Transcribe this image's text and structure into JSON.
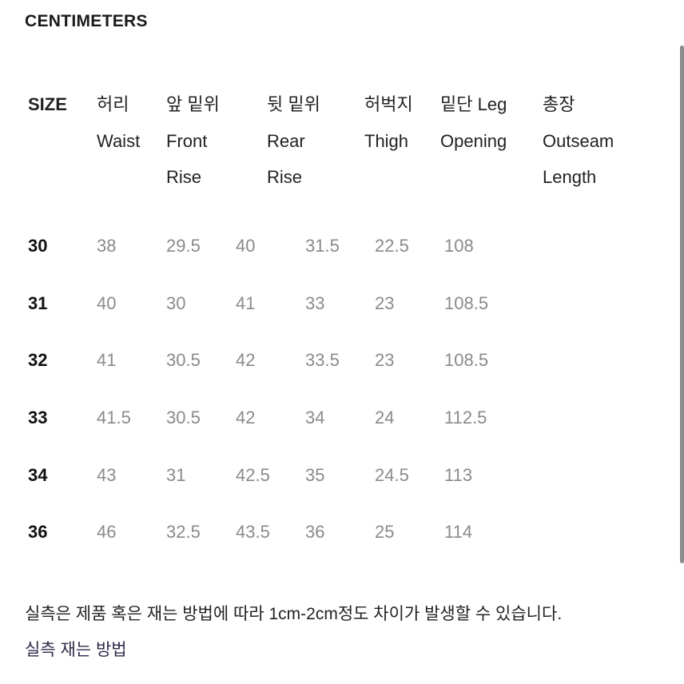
{
  "title": "CENTIMETERS",
  "headers": [
    {
      "lines": [
        "SIZE"
      ]
    },
    {
      "lines": [
        "허리",
        "Waist"
      ]
    },
    {
      "lines": [
        "앞 밑위",
        "Front",
        "Rise"
      ]
    },
    {
      "lines": [
        "뒷 밑위",
        "Rear",
        "Rise"
      ]
    },
    {
      "lines": [
        "허벅지",
        "Thigh"
      ]
    },
    {
      "lines": [
        "밑단 Leg",
        "Opening"
      ]
    },
    {
      "lines": [
        "총장",
        "Outseam",
        "Length"
      ]
    }
  ],
  "rows": [
    {
      "size": "30",
      "values": [
        "38",
        "29.5",
        "40",
        "31.5",
        "22.5",
        "108"
      ]
    },
    {
      "size": "31",
      "values": [
        "40",
        "30",
        "41",
        "33",
        "23",
        "108.5"
      ]
    },
    {
      "size": "32",
      "values": [
        "41",
        "30.5",
        "42",
        "33.5",
        "23",
        "108.5"
      ]
    },
    {
      "size": "33",
      "values": [
        "41.5",
        "30.5",
        "42",
        "34",
        "24",
        "112.5"
      ]
    },
    {
      "size": "34",
      "values": [
        "43",
        "31",
        "42.5",
        "35",
        "24.5",
        "113"
      ]
    },
    {
      "size": "36",
      "values": [
        "46",
        "32.5",
        "43.5",
        "36",
        "25",
        "114"
      ]
    }
  ],
  "note": "실측은 제품 혹은 재는 방법에 따라 1cm-2cm정도 차이가 발생할 수 있습니다.",
  "link": "실측 재는 방법",
  "colors": {
    "value_text": "#8a8a8a",
    "scrollbar": "#8c8c8c"
  }
}
